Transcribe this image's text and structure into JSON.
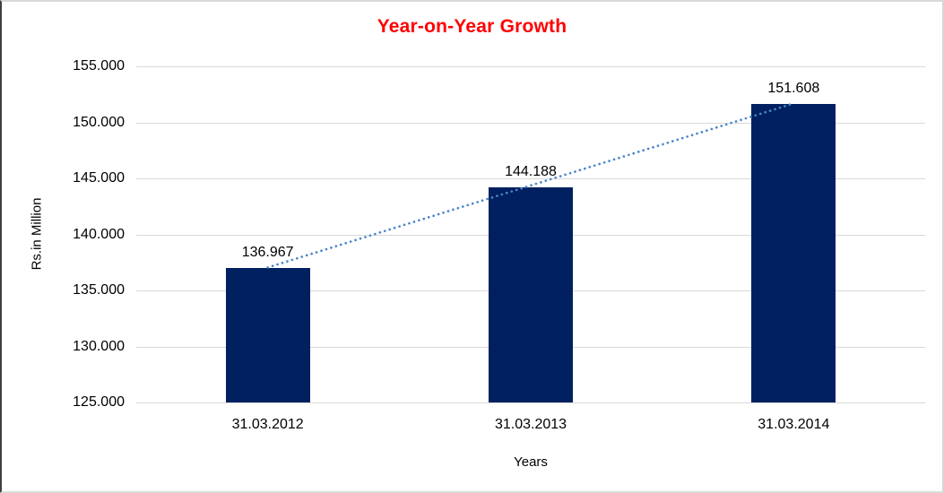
{
  "chart_data": {
    "type": "bar",
    "title": "Year-on-Year Growth",
    "categories": [
      "31.03.2012",
      "31.03.2013",
      "31.03.2014"
    ],
    "values": [
      136.967,
      144.188,
      151.608
    ],
    "data_labels": [
      "136.967",
      "144.188",
      "151.608"
    ],
    "xlabel": "Years",
    "ylabel": "Rs.in Million",
    "ylim": [
      125,
      155
    ],
    "ytick_values": [
      125,
      130,
      135,
      140,
      145,
      150,
      155
    ],
    "ytick_labels": [
      "125.000",
      "130.000",
      "135.000",
      "140.000",
      "145.000",
      "150.000",
      "155.000"
    ],
    "grid": true,
    "legend": "none",
    "trendline": {
      "type": "linear",
      "style": "dotted",
      "from_category": "31.03.2012",
      "to_category": "31.03.2014"
    }
  },
  "colors": {
    "title": "#FF0000",
    "bar": "#002060",
    "trendline": "#4A86C8",
    "gridline": "#D9D9D9",
    "text": "#000000",
    "background": "#FFFFFF"
  }
}
